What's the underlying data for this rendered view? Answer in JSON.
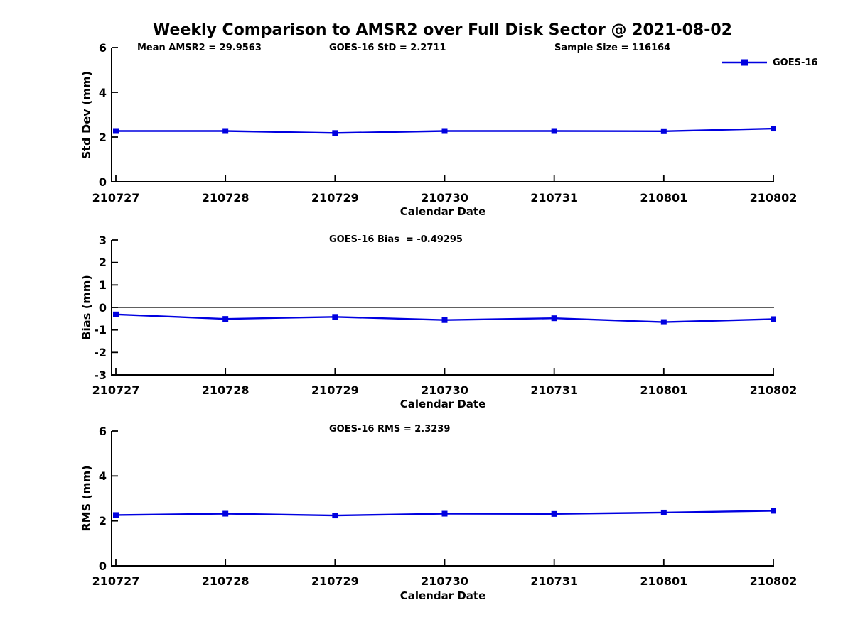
{
  "figure": {
    "title": "Weekly Comparison to AMSR2 over Full Disk Sector @ 2021-08-02",
    "background": "#ffffff",
    "axis_color": "#000000",
    "text_color": "#000000"
  },
  "legend": {
    "label": "GOES-16",
    "series_color": "#0000e0",
    "marker": "filled-square",
    "position": "top-right-outside"
  },
  "chart_data": [
    {
      "type": "line",
      "annotations": [
        "Mean AMSR2 = 29.9563",
        "GOES-16 StD = 2.2711",
        "Sample Size = 116164"
      ],
      "categories": [
        "210727",
        "210728",
        "210729",
        "210730",
        "210731",
        "210801",
        "210802"
      ],
      "series": [
        {
          "name": "GOES-16",
          "color": "#0000e0",
          "marker": "square",
          "values": [
            2.27,
            2.27,
            2.18,
            2.27,
            2.27,
            2.26,
            2.38
          ]
        }
      ],
      "xlabel": "Calendar Date",
      "ylabel": "Std Dev (mm)",
      "ylim": [
        0,
        6
      ],
      "yticks": [
        0,
        2,
        4,
        6
      ],
      "zero_line": false,
      "grid": false
    },
    {
      "type": "line",
      "title": "GOES-16 Bias  = -0.49295",
      "categories": [
        "210727",
        "210728",
        "210729",
        "210730",
        "210731",
        "210801",
        "210802"
      ],
      "series": [
        {
          "name": "GOES-16",
          "color": "#0000e0",
          "marker": "square",
          "values": [
            -0.31,
            -0.51,
            -0.42,
            -0.56,
            -0.48,
            -0.65,
            -0.52
          ]
        }
      ],
      "xlabel": "Calendar Date",
      "ylabel": "Bias (mm)",
      "ylim": [
        -3,
        3
      ],
      "yticks": [
        3,
        2,
        1,
        0,
        -1,
        -2,
        -3
      ],
      "zero_line": true,
      "grid": false
    },
    {
      "type": "line",
      "title": "GOES-16 RMS = 2.3239",
      "categories": [
        "210727",
        "210728",
        "210729",
        "210730",
        "210731",
        "210801",
        "210802"
      ],
      "series": [
        {
          "name": "GOES-16",
          "color": "#0000e0",
          "marker": "square",
          "values": [
            2.26,
            2.32,
            2.24,
            2.32,
            2.31,
            2.37,
            2.45
          ]
        }
      ],
      "xlabel": "Calendar Date",
      "ylabel": "RMS (mm)",
      "ylim": [
        0,
        6
      ],
      "yticks": [
        0,
        2,
        4,
        6
      ],
      "zero_line": false,
      "grid": false
    }
  ]
}
